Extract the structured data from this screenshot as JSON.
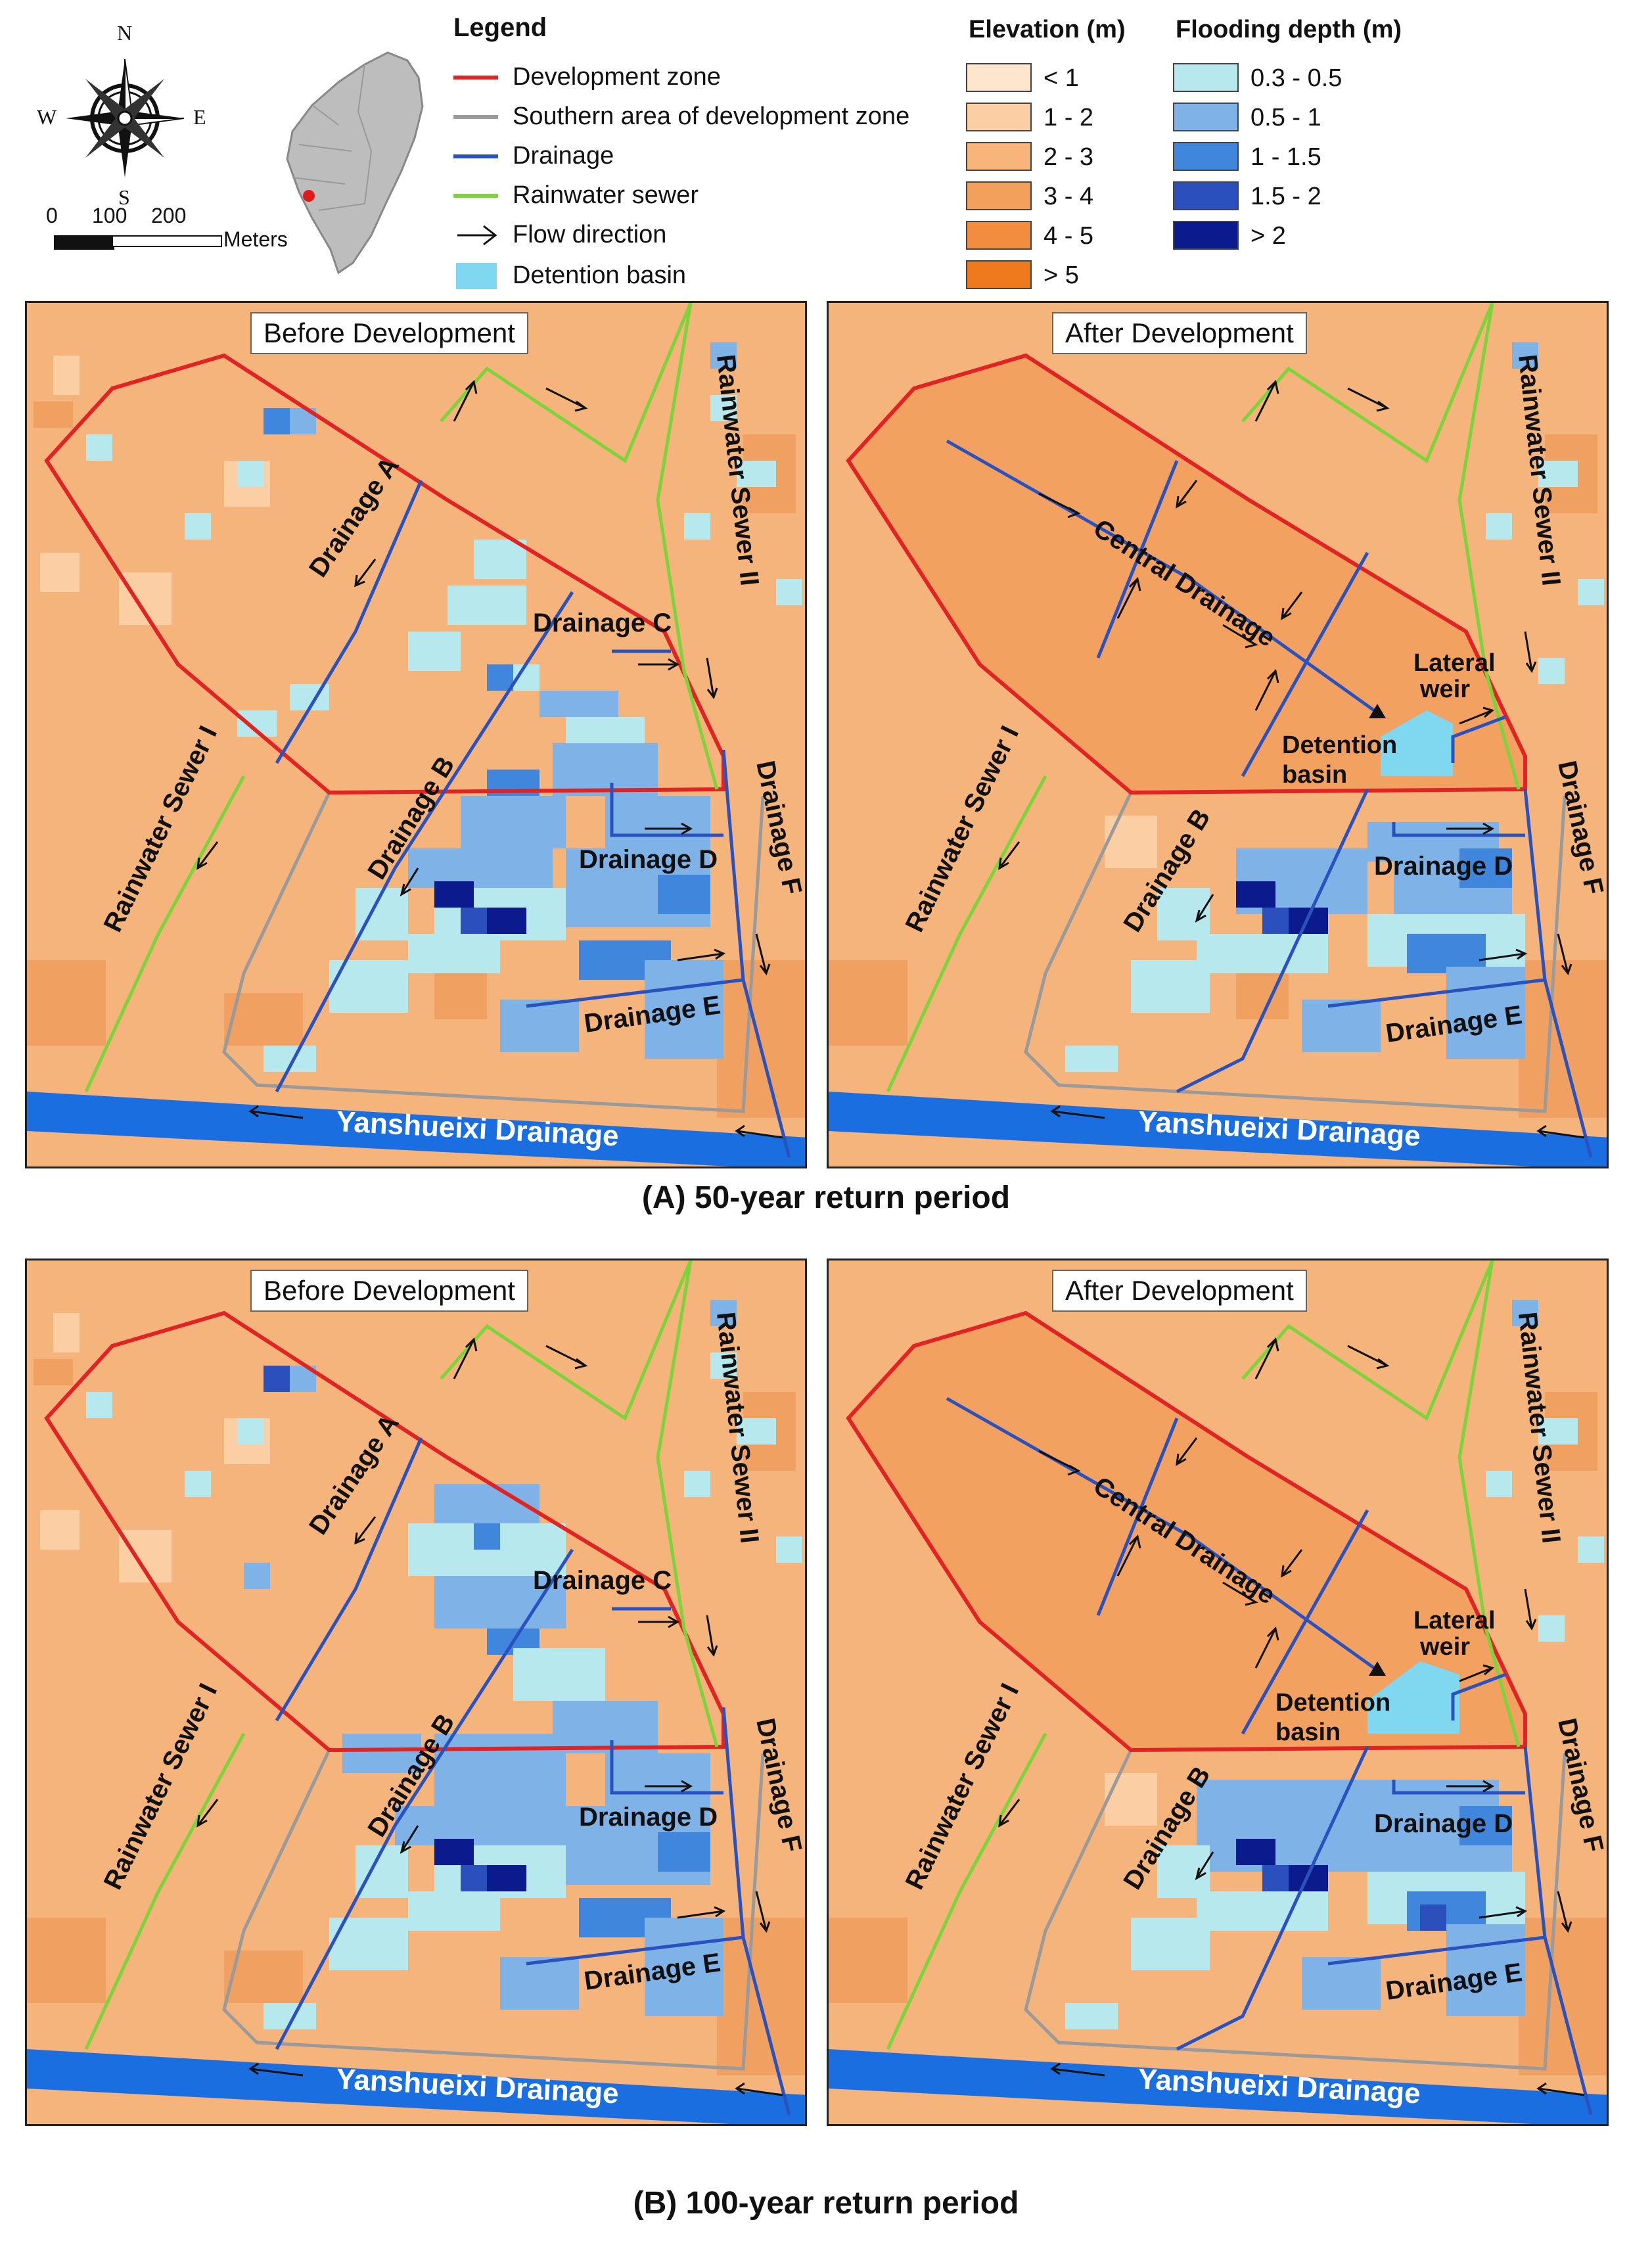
{
  "header": {
    "compass": {
      "n": "N",
      "s": "S",
      "e": "E",
      "w": "W"
    },
    "scale": {
      "ticks": [
        "0",
        "100",
        "200"
      ],
      "unit": "Meters"
    },
    "inset_icon": "taiwan-locator-map"
  },
  "legend": {
    "title": "Legend",
    "items": [
      {
        "label": "Development zone",
        "color": "#e02424",
        "icon": "line"
      },
      {
        "label": "Southern area of development zone",
        "color": "#9a9a9a",
        "icon": "line"
      },
      {
        "label": "Drainage",
        "color": "#2a52be",
        "icon": "line"
      },
      {
        "label": "Rainwater sewer",
        "color": "#7ad43a",
        "icon": "line"
      },
      {
        "label": "Flow direction",
        "color": "#111111",
        "icon": "arrow"
      },
      {
        "label": "Detention basin",
        "color": "#7fd8f0",
        "icon": "fill"
      }
    ],
    "elevation": {
      "title": "Elevation (m)",
      "classes": [
        {
          "label": "< 1",
          "color": "#fde6cd"
        },
        {
          "label": "1 - 2",
          "color": "#fbcfa3"
        },
        {
          "label": "2 - 3",
          "color": "#f7b57b"
        },
        {
          "label": "3 - 4",
          "color": "#f4a05d"
        },
        {
          "label": "4 - 5",
          "color": "#f28d3f"
        },
        {
          "label": "> 5",
          "color": "#ef7a1d"
        }
      ]
    },
    "flooding": {
      "title": "Flooding depth (m)",
      "classes": [
        {
          "label": "0.3 - 0.5",
          "color": "#b6e8ee"
        },
        {
          "label": "0.5 - 1",
          "color": "#7fb3e8"
        },
        {
          "label": "1 - 1.5",
          "color": "#3f86dc"
        },
        {
          "label": "1.5 - 2",
          "color": "#2c4fbe"
        },
        {
          "label": "> 2",
          "color": "#0b1a8c"
        }
      ]
    }
  },
  "panels": [
    {
      "title": "Before Development"
    },
    {
      "title": "After Development"
    },
    {
      "title": "Before Development"
    },
    {
      "title": "After Development"
    }
  ],
  "labels": {
    "drainage_a": "Drainage A",
    "drainage_b": "Drainage B",
    "drainage_c": "Drainage C",
    "drainage_d": "Drainage D",
    "drainage_e": "Drainage E",
    "drainage_f": "Drainage F",
    "central_drainage": "Central Drainage",
    "sewer_1": "Rainwater Sewer I",
    "sewer_2": "Rainwater Sewer II",
    "yanshueixi": "Yanshueixi Drainage",
    "lateral_weir_1": "Lateral",
    "lateral_weir_2": "weir",
    "detention_1": "Detention",
    "detention_2": "basin"
  },
  "captions": {
    "a": "(A) 50-year return period",
    "b": "(B) 100-year return period"
  }
}
